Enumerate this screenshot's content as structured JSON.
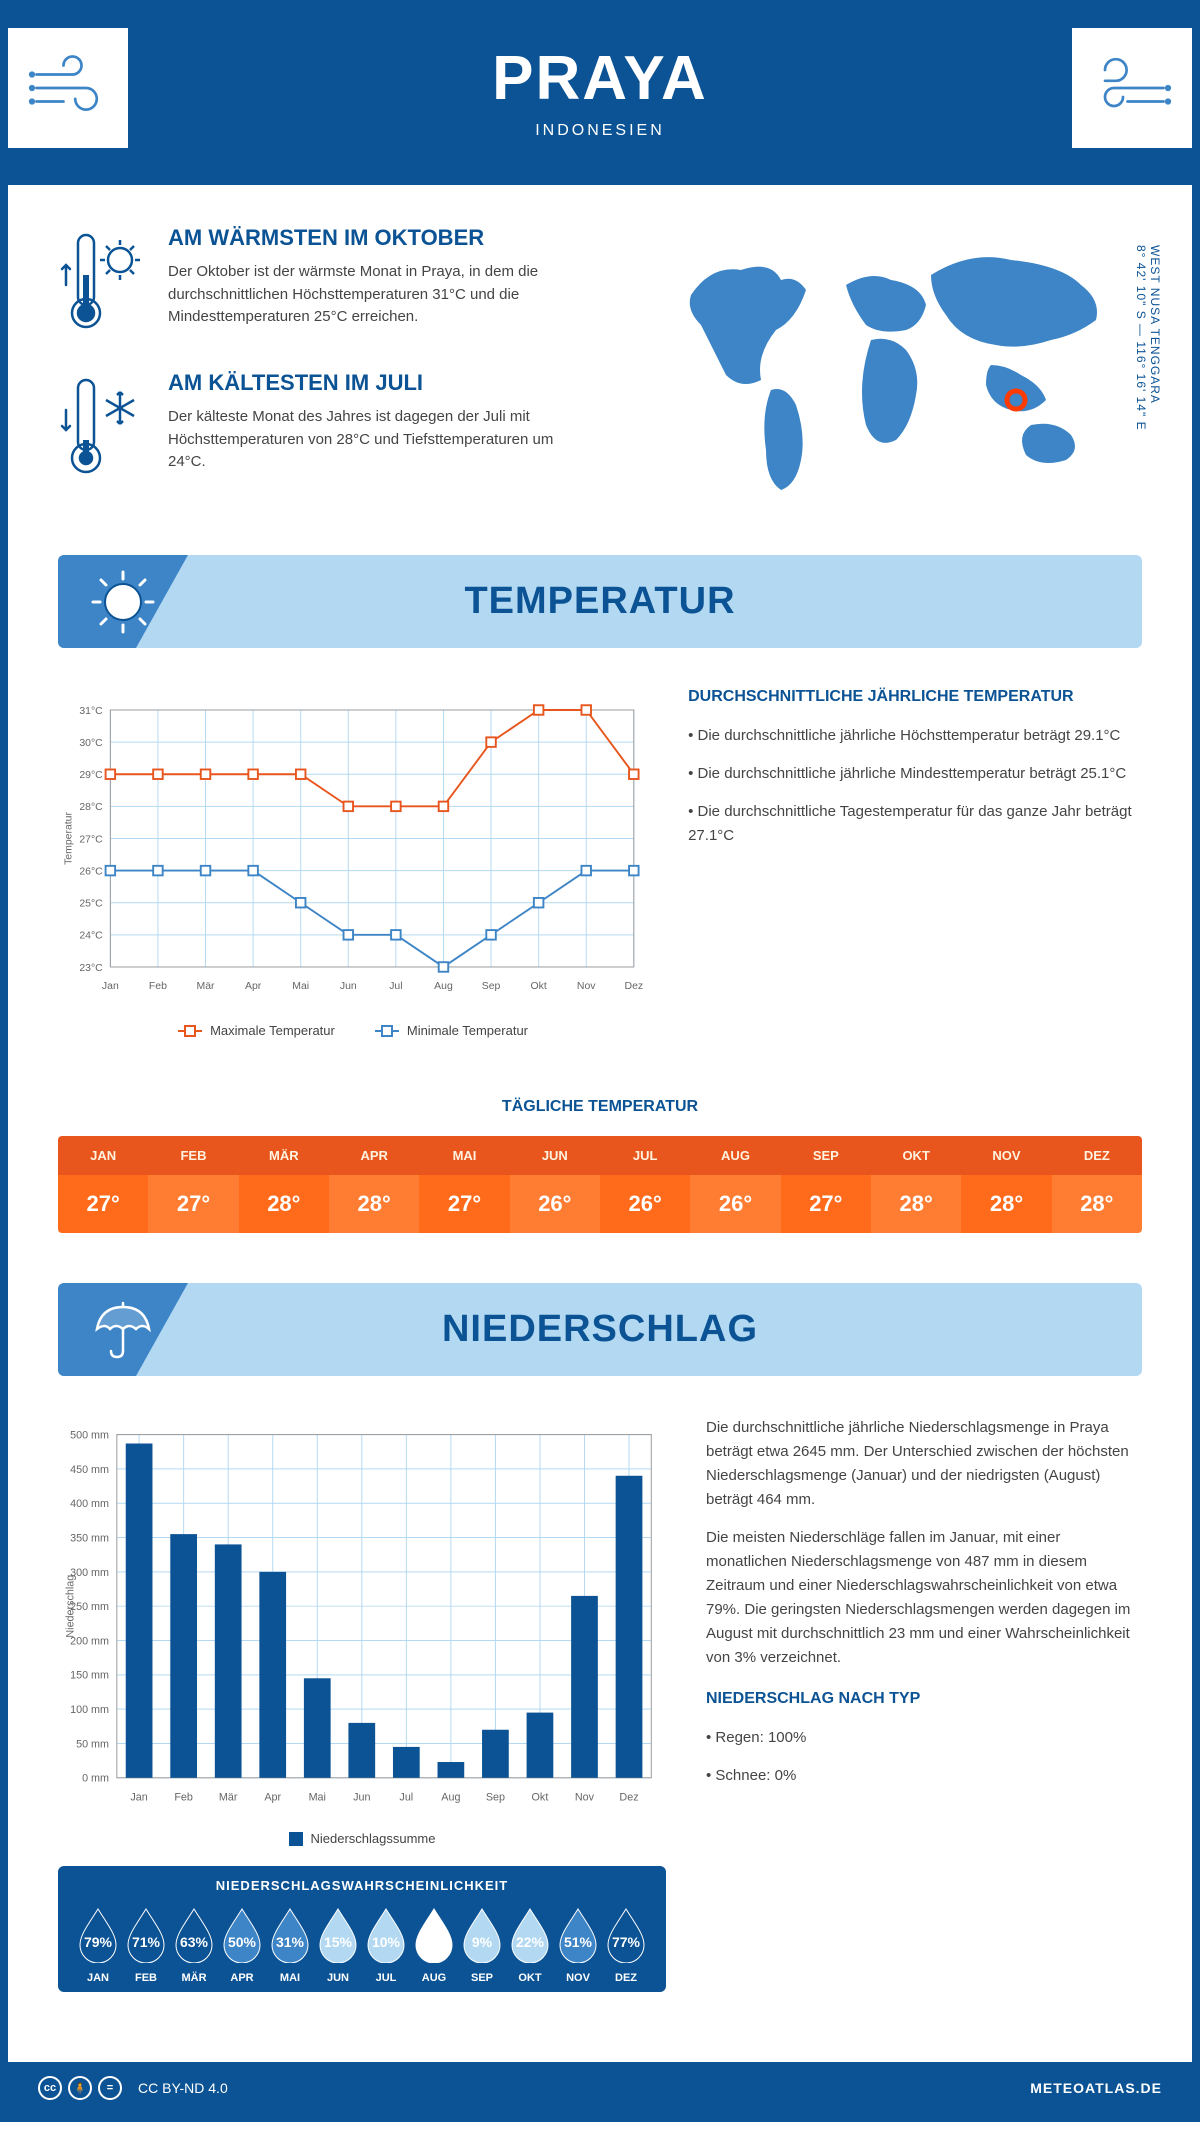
{
  "header": {
    "city": "PRAYA",
    "country": "INDONESIEN"
  },
  "coords": "8° 42' 10\" S — 116° 16' 14\" E",
  "region": "WEST NUSA TENGGARA",
  "warm": {
    "title": "AM WÄRMSTEN IM OKTOBER",
    "text": "Der Oktober ist der wärmste Monat in Praya, in dem die durchschnittlichen Höchsttemperaturen 31°C und die Mindesttemperaturen 25°C erreichen."
  },
  "cold": {
    "title": "AM KÄLTESTEN IM JULI",
    "text": "Der kälteste Monat des Jahres ist dagegen der Juli mit Höchsttemperaturen von 28°C und Tiefsttemperaturen um 24°C."
  },
  "banners": {
    "temp": "TEMPERATUR",
    "precip": "NIEDERSCHLAG"
  },
  "months": [
    "Jan",
    "Feb",
    "Mär",
    "Apr",
    "Mai",
    "Jun",
    "Jul",
    "Aug",
    "Sep",
    "Okt",
    "Nov",
    "Dez"
  ],
  "months_upper": [
    "JAN",
    "FEB",
    "MÄR",
    "APR",
    "MAI",
    "JUN",
    "JUL",
    "AUG",
    "SEP",
    "OKT",
    "NOV",
    "DEZ"
  ],
  "temp_chart": {
    "type": "line",
    "y_axis_label": "Temperatur",
    "ylim": [
      23,
      31
    ],
    "ytick_step": 1,
    "y_suffix": "°C",
    "grid_color": "#b3d9f2",
    "axis_font_size": 11,
    "series": [
      {
        "name": "Maximale Temperatur",
        "color": "#e8551d",
        "values": [
          29,
          29,
          29,
          29,
          29,
          28,
          28,
          28,
          30,
          31,
          31,
          29
        ]
      },
      {
        "name": "Minimale Temperatur",
        "color": "#3d85c6",
        "values": [
          26,
          26,
          26,
          26,
          25,
          24,
          24,
          23,
          24,
          25,
          26,
          26
        ]
      }
    ],
    "marker_size": 5,
    "line_width": 2
  },
  "temp_info": {
    "title": "DURCHSCHNITTLICHE JÄHRLICHE TEMPERATUR",
    "bullets": [
      "• Die durchschnittliche jährliche Höchsttemperatur beträgt 29.1°C",
      "• Die durchschnittliche jährliche Mindesttemperatur beträgt 25.1°C",
      "• Die durchschnittliche Tagestemperatur für das ganze Jahr beträgt 27.1°C"
    ]
  },
  "daily_temp": {
    "title": "TÄGLICHE TEMPERATUR",
    "values": [
      "27°",
      "27°",
      "28°",
      "28°",
      "27°",
      "26°",
      "26°",
      "26°",
      "27°",
      "28°",
      "28°",
      "28°"
    ],
    "header_bg": "#e8551d",
    "header_color": "#fff3e0",
    "cell_bg_even": "#ff6b1a",
    "cell_bg_odd": "#ff7d33",
    "cell_color": "#ffffff"
  },
  "precip_chart": {
    "type": "bar",
    "y_axis_label": "Niederschlag",
    "ylim": [
      0,
      500
    ],
    "ytick_step": 50,
    "y_suffix": " mm",
    "grid_color": "#b3d9f2",
    "bar_color": "#0b5394",
    "bar_width": 0.6,
    "values": [
      487,
      355,
      340,
      300,
      145,
      80,
      45,
      23,
      70,
      95,
      265,
      440
    ],
    "legend": "Niederschlagssumme"
  },
  "precip_text": {
    "p1": "Die durchschnittliche jährliche Niederschlagsmenge in Praya beträgt etwa 2645 mm. Der Unterschied zwischen der höchsten Niederschlagsmenge (Januar) und der niedrigsten (August) beträgt 464 mm.",
    "p2": "Die meisten Niederschläge fallen im Januar, mit einer monatlichen Niederschlagsmenge von 487 mm in diesem Zeitraum und einer Niederschlagswahrscheinlichkeit von etwa 79%. Die geringsten Niederschlagsmengen werden dagegen im August mit durchschnittlich 23 mm und einer Wahrscheinlichkeit von 3% verzeichnet.",
    "type_title": "NIEDERSCHLAG NACH TYP",
    "type_rain": "• Regen: 100%",
    "type_snow": "• Schnee: 0%"
  },
  "probability": {
    "title": "NIEDERSCHLAGSWAHRSCHEINLICHKEIT",
    "values": [
      79,
      71,
      63,
      50,
      31,
      15,
      10,
      3,
      9,
      22,
      51,
      77
    ],
    "fill_dark": "#0b5394",
    "fill_mid": "#3d85c6",
    "fill_light": "#b3d9f2",
    "fill_white": "#ffffff"
  },
  "footer": {
    "license": "CC BY-ND 4.0",
    "site": "METEOATLAS.DE"
  },
  "colors": {
    "primary": "#0b5394",
    "secondary": "#3d85c6",
    "light_blue": "#b3d9f2",
    "orange": "#e8551d"
  }
}
